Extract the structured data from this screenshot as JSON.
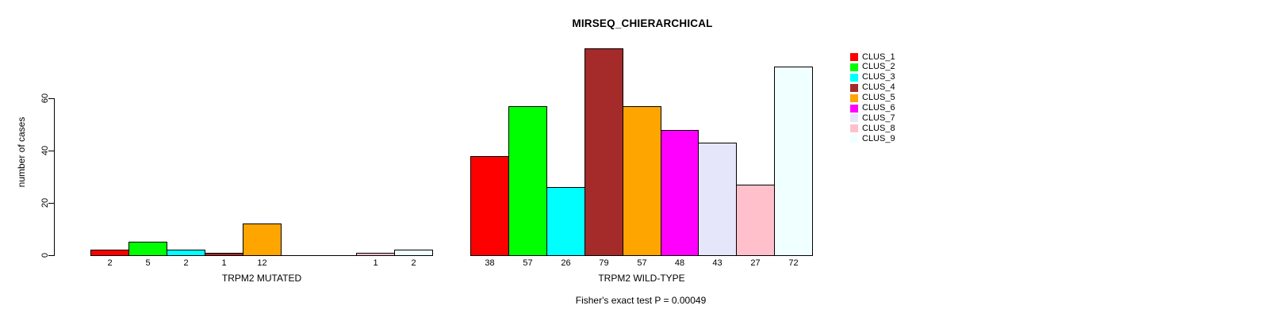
{
  "chart_data": {
    "type": "bar",
    "title": "MIRSEQ_CHIERARCHICAL",
    "ylabel": "number of cases",
    "ylim": [
      0,
      79
    ],
    "yticks": [
      0,
      20,
      40,
      60
    ],
    "grid": false,
    "legend_position": "top-right",
    "bar_border_color": "#000000",
    "series": [
      {
        "name": "CLUS_1",
        "color": "#FF0000"
      },
      {
        "name": "CLUS_2",
        "color": "#00FF00"
      },
      {
        "name": "CLUS_3",
        "color": "#00FFFF"
      },
      {
        "name": "CLUS_4",
        "color": "#A52A2A"
      },
      {
        "name": "CLUS_5",
        "color": "#FFA500"
      },
      {
        "name": "CLUS_6",
        "color": "#FF00FF"
      },
      {
        "name": "CLUS_7",
        "color": "#E6E6FA"
      },
      {
        "name": "CLUS_8",
        "color": "#FFC0CB"
      },
      {
        "name": "CLUS_9",
        "color": "#F0FFFF"
      }
    ],
    "groups": [
      {
        "label": "TRPM2 MUTATED",
        "values": [
          2,
          5,
          2,
          1,
          12,
          0,
          0,
          1,
          2
        ]
      },
      {
        "label": "TRPM2 WILD-TYPE",
        "values": [
          38,
          57,
          26,
          79,
          57,
          48,
          43,
          27,
          72
        ]
      }
    ],
    "show_bar_value_labels": true,
    "hide_zero_value_labels": true,
    "annotation": "Fisher's exact test P = 0.00049"
  }
}
